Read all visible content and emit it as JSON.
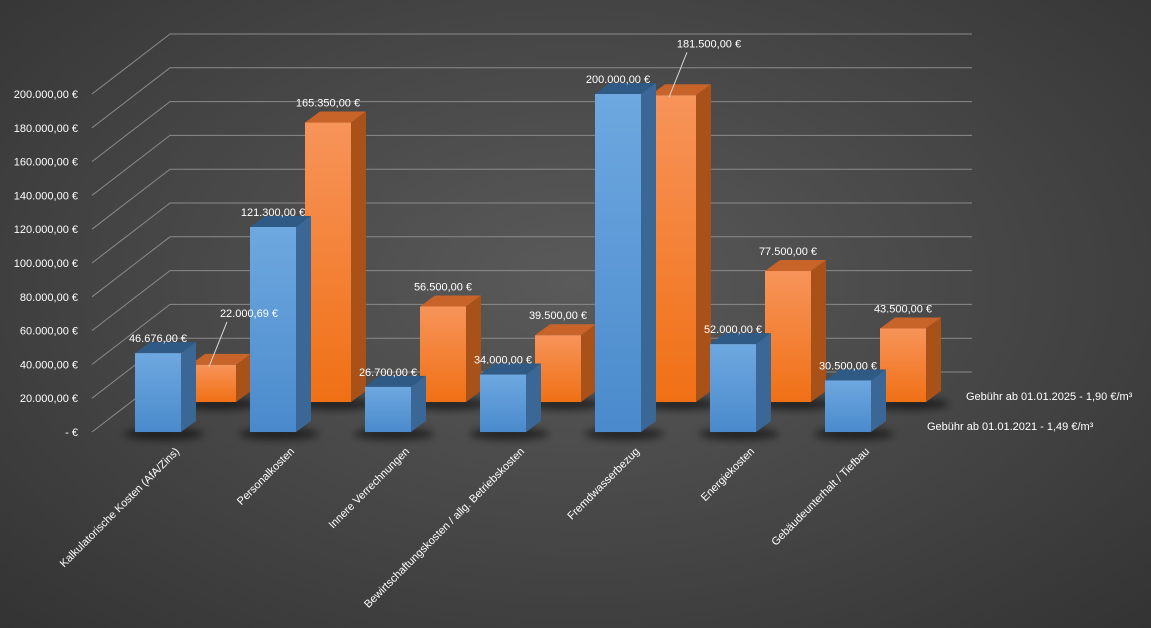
{
  "chart_data": {
    "type": "bar",
    "title": "",
    "xlabel": "",
    "ylabel": "",
    "ylim": [
      0,
      200000
    ],
    "ytick_step": 20000,
    "grid": true,
    "y_tick_labels": [
      "-  €",
      "20.000,00 €",
      "40.000,00 €",
      "60.000,00 €",
      "80.000,00 €",
      "100.000,00 €",
      "120.000,00 €",
      "140.000,00 €",
      "160.000,00 €",
      "180.000,00 €",
      "200.000,00 €"
    ],
    "categories": [
      "Kalkulatorische Kosten (AfA/Zins)",
      "Personalkosten",
      "Innere Verrechnungen",
      "Bewirtschaftungskosten / allg. Betriebskosten",
      "Fremdwasserbezug",
      "Energiekosten",
      "Gebäudeunterhalt / Tiefbau"
    ],
    "series": [
      {
        "name": "Gebühr ab 01.01.2021 - 1,49 €/m³",
        "color": "#5b9bd5",
        "values": [
          46676,
          121300,
          26700,
          34000,
          200000,
          52000,
          30500
        ],
        "labels": [
          "46.676,00 €",
          "121.300,00 €",
          "26.700,00 €",
          "34.000,00 €",
          "200.000,00 €",
          "52.000,00 €",
          "30.500,00 €"
        ]
      },
      {
        "name": "Gebühr ab 01.01.2025 - 1,90 €/m³",
        "color": "#f47b20",
        "values": [
          22000.69,
          165350,
          56500,
          39500,
          181500,
          77500,
          43500
        ],
        "labels": [
          "22.000,69 €",
          "165.350,00 €",
          "56.500,00 €",
          "39.500,00 €",
          "181.500,00 €",
          "77.500,00 €",
          "43.500,00 €"
        ]
      }
    ]
  }
}
